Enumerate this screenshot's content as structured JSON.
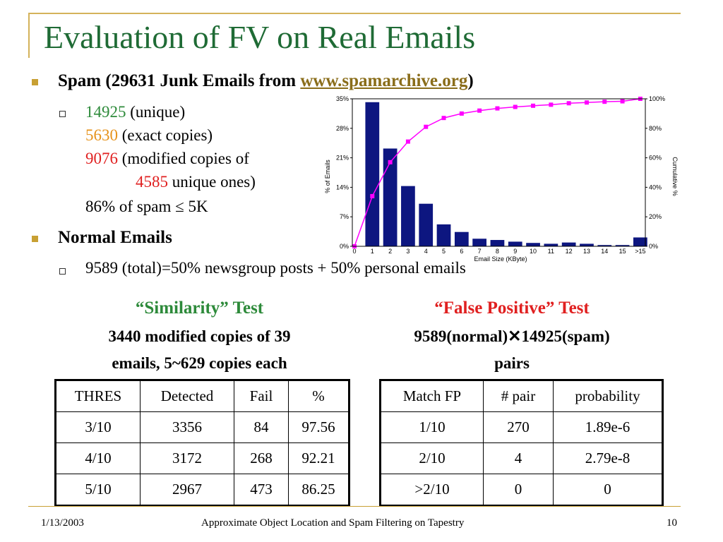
{
  "title": "Evaluation of FV on Real Emails",
  "spam": {
    "prefix": "Spam (29631 Junk Emails from ",
    "link": "www.spamarchive.org",
    "suffix": ")",
    "unique_num": "14925",
    "unique_txt": " (unique)",
    "exact_num": "5630",
    "exact_txt": " (exact copies)",
    "mod_num": "9076",
    "mod_txt": " (modified copies of",
    "mod2_num": "4585",
    "mod2_txt": " unique ones)",
    "percent_txt": "86% of spam ≤ 5K"
  },
  "normal": {
    "heading": "Normal Emails",
    "detail": "9589 (total)=50% newsgroup posts + 50% personal emails"
  },
  "chart_data": {
    "type": "bar",
    "categories": [
      "0",
      "1",
      "2",
      "3",
      "4",
      "5",
      "6",
      "7",
      "8",
      "9",
      "10",
      "11",
      "12",
      "13",
      "14",
      "15",
      ">15"
    ],
    "series": [
      {
        "values": [
          0,
          34.2,
          23.2,
          14.3,
          10.1,
          5.2,
          3.4,
          1.8,
          1.5,
          1.1,
          0.8,
          0.6,
          0.9,
          0.6,
          0.3,
          0.3,
          2.1
        ]
      },
      {
        "values": [
          0,
          34,
          57,
          71,
          81,
          87,
          90,
          92,
          93.5,
          94.5,
          95.3,
          96,
          97,
          97.5,
          98,
          98.3,
          100
        ]
      }
    ],
    "xlabel": "Email Size (KByte)",
    "ylabel": "% of Emails",
    "y2label": "Cumulative %",
    "ylim": [
      0,
      35
    ],
    "y2lim": [
      0,
      100
    ],
    "yticks": [
      "0%",
      "7%",
      "14%",
      "21%",
      "28%",
      "35%"
    ],
    "y2ticks": [
      "0%",
      "20%",
      "40%",
      "60%",
      "80%",
      "100%"
    ],
    "colors": {
      "bars": "#0d1680",
      "line": "#ff00ff"
    }
  },
  "similarity": {
    "heading": "“Similarity” Test",
    "sub1": "3440 modified copies of 39",
    "sub2": "emails, 5~629 copies each",
    "headers": [
      "THRES",
      "Detected",
      "Fail",
      "%"
    ],
    "rows": [
      [
        "3/10",
        "3356",
        "84",
        "97.56"
      ],
      [
        "4/10",
        "3172",
        "268",
        "92.21"
      ],
      [
        "5/10",
        "2967",
        "473",
        "86.25"
      ]
    ]
  },
  "falsepos": {
    "heading": "“False Positive” Test",
    "sub1": "9589(normal)✕14925(spam)",
    "sub2": "pairs",
    "headers": [
      "Match FP",
      "# pair",
      "probability"
    ],
    "rows": [
      [
        "1/10",
        "270",
        "1.89e-6"
      ],
      [
        "2/10",
        "4",
        "2.79e-8"
      ],
      [
        ">2/10",
        "0",
        "0"
      ]
    ]
  },
  "footer": {
    "date": "1/13/2003",
    "center": "Approximate Object Location and Spam Filtering on Tapestry",
    "page": "10"
  }
}
